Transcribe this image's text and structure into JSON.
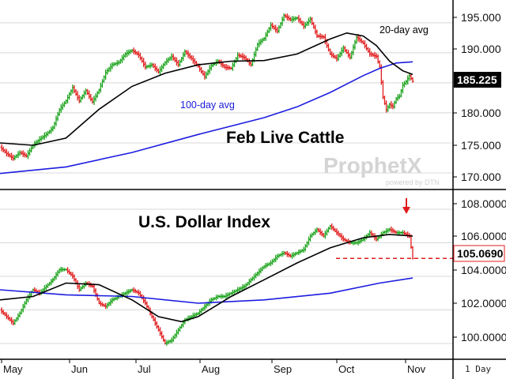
{
  "branding": {
    "watermark": "ProphetX",
    "watermark_sub": "powered by DTN"
  },
  "period_label": "1 Day",
  "x_axis": {
    "months": [
      "May",
      "Jun",
      "Jul",
      "Aug",
      "Sep",
      "Oct",
      "Nov"
    ]
  },
  "colors": {
    "up_bar": "#1aa31a",
    "down_bar": "#e01b1b",
    "ma_short": "#000000",
    "ma_long": "#1c1ce0",
    "marker": "#e01b1b",
    "grid": "#d8d8d8"
  },
  "chart_data": [
    {
      "type": "ohlc",
      "title": "Feb Live Cattle",
      "ylim": [
        167.5,
        198.0
      ],
      "yticks": [
        "170.000",
        "175.000",
        "180.000",
        "185.000",
        "190.000",
        "195.000"
      ],
      "grid": true,
      "last_value_label": "185.225",
      "annotations": {
        "short_ma": "20-day avg",
        "long_ma": "100-day avg"
      },
      "price_path": [
        [
          0,
          174.3
        ],
        [
          4,
          173.2
        ],
        [
          8,
          172.4
        ],
        [
          12,
          173.4
        ],
        [
          16,
          172.8
        ],
        [
          20,
          174.6
        ],
        [
          24,
          175.6
        ],
        [
          28,
          176.4
        ],
        [
          32,
          177.5
        ],
        [
          36,
          180.5
        ],
        [
          40,
          182.0
        ],
        [
          44,
          184.2
        ],
        [
          48,
          182.0
        ],
        [
          52,
          183.7
        ],
        [
          56,
          181.8
        ],
        [
          60,
          183.8
        ],
        [
          64,
          186.7
        ],
        [
          68,
          188.0
        ],
        [
          72,
          188.4
        ],
        [
          76,
          189.8
        ],
        [
          80,
          190.4
        ],
        [
          84,
          189.6
        ],
        [
          88,
          187.6
        ],
        [
          92,
          188.0
        ],
        [
          96,
          186.8
        ],
        [
          100,
          188.4
        ],
        [
          104,
          189.4
        ],
        [
          108,
          188.0
        ],
        [
          112,
          190.2
        ],
        [
          116,
          189.0
        ],
        [
          120,
          187.7
        ],
        [
          124,
          186.0
        ],
        [
          128,
          187.9
        ],
        [
          132,
          188.6
        ],
        [
          136,
          187.6
        ],
        [
          140,
          187.4
        ],
        [
          144,
          189.6
        ],
        [
          148,
          189.2
        ],
        [
          152,
          188.0
        ],
        [
          156,
          191.4
        ],
        [
          160,
          192.4
        ],
        [
          164,
          194.6
        ],
        [
          168,
          193.6
        ],
        [
          172,
          196.2
        ],
        [
          176,
          195.5
        ],
        [
          180,
          195.8
        ],
        [
          184,
          194.4
        ],
        [
          188,
          195.6
        ],
        [
          192,
          192.8
        ],
        [
          196,
          192.6
        ],
        [
          200,
          189.8
        ],
        [
          204,
          189.0
        ],
        [
          208,
          190.8
        ],
        [
          212,
          189.2
        ],
        [
          216,
          192.6
        ],
        [
          220,
          191.6
        ],
        [
          224,
          189.8
        ],
        [
          228,
          189.4
        ],
        [
          230,
          187.6
        ],
        [
          232,
          182.6
        ],
        [
          234,
          180.5
        ],
        [
          236,
          181.4
        ],
        [
          238,
          181.0
        ],
        [
          240,
          182.4
        ],
        [
          242,
          182.8
        ],
        [
          244,
          184.6
        ],
        [
          246,
          185.2
        ],
        [
          248,
          186.2
        ],
        [
          250,
          185.225
        ]
      ],
      "short_ma_path": [
        [
          0,
          175.0
        ],
        [
          20,
          174.6
        ],
        [
          40,
          175.8
        ],
        [
          60,
          180.6
        ],
        [
          80,
          184.4
        ],
        [
          100,
          186.6
        ],
        [
          120,
          188.0
        ],
        [
          140,
          188.6
        ],
        [
          160,
          188.7
        ],
        [
          180,
          189.8
        ],
        [
          200,
          192.3
        ],
        [
          210,
          193.3
        ],
        [
          220,
          192.8
        ],
        [
          228,
          191.2
        ],
        [
          236,
          188.6
        ],
        [
          244,
          187.0
        ],
        [
          250,
          186.4
        ]
      ],
      "long_ma_path": [
        [
          0,
          169.9
        ],
        [
          40,
          171.0
        ],
        [
          80,
          173.4
        ],
        [
          120,
          176.4
        ],
        [
          160,
          179.2
        ],
        [
          180,
          181.0
        ],
        [
          200,
          183.4
        ],
        [
          220,
          186.2
        ],
        [
          230,
          187.4
        ],
        [
          240,
          188.3
        ],
        [
          250,
          188.5
        ]
      ]
    },
    {
      "type": "ohlc",
      "title": "U.S. Dollar Index",
      "ylim": [
        99.2,
        108.8
      ],
      "yticks": [
        "100.0000",
        "102.0000",
        "104.0000",
        "106.0000",
        "108.0000"
      ],
      "grid": true,
      "last_value_label": "105.0690",
      "reference_line_value": 105.069,
      "price_path": [
        [
          0,
          102.0
        ],
        [
          4,
          101.6
        ],
        [
          8,
          101.2
        ],
        [
          12,
          101.8
        ],
        [
          16,
          102.6
        ],
        [
          20,
          103.2
        ],
        [
          24,
          103.0
        ],
        [
          28,
          103.4
        ],
        [
          32,
          103.8
        ],
        [
          36,
          104.4
        ],
        [
          40,
          104.4
        ],
        [
          44,
          104.0
        ],
        [
          48,
          103.2
        ],
        [
          52,
          103.6
        ],
        [
          56,
          103.4
        ],
        [
          60,
          102.4
        ],
        [
          64,
          102.2
        ],
        [
          68,
          102.6
        ],
        [
          72,
          102.8
        ],
        [
          76,
          103.0
        ],
        [
          80,
          103.2
        ],
        [
          84,
          103.0
        ],
        [
          88,
          102.4
        ],
        [
          92,
          101.6
        ],
        [
          96,
          100.8
        ],
        [
          100,
          100.0
        ],
        [
          104,
          100.2
        ],
        [
          108,
          100.8
        ],
        [
          112,
          101.4
        ],
        [
          116,
          101.6
        ],
        [
          120,
          101.8
        ],
        [
          124,
          102.2
        ],
        [
          128,
          102.6
        ],
        [
          132,
          102.8
        ],
        [
          136,
          102.8
        ],
        [
          140,
          103.0
        ],
        [
          144,
          103.2
        ],
        [
          148,
          103.4
        ],
        [
          152,
          103.8
        ],
        [
          156,
          104.2
        ],
        [
          160,
          104.6
        ],
        [
          164,
          104.8
        ],
        [
          168,
          105.2
        ],
        [
          172,
          105.4
        ],
        [
          176,
          105.2
        ],
        [
          180,
          105.4
        ],
        [
          184,
          105.6
        ],
        [
          188,
          106.4
        ],
        [
          192,
          106.8
        ],
        [
          196,
          106.4
        ],
        [
          200,
          107.0
        ],
        [
          204,
          106.6
        ],
        [
          208,
          106.2
        ],
        [
          212,
          106.0
        ],
        [
          216,
          106.0
        ],
        [
          220,
          106.2
        ],
        [
          224,
          106.6
        ],
        [
          228,
          106.2
        ],
        [
          232,
          106.6
        ],
        [
          236,
          106.8
        ],
        [
          240,
          106.6
        ],
        [
          244,
          106.6
        ],
        [
          248,
          106.4
        ],
        [
          250,
          105.069
        ]
      ],
      "short_ma_path": [
        [
          0,
          102.6
        ],
        [
          20,
          102.8
        ],
        [
          40,
          103.6
        ],
        [
          60,
          103.5
        ],
        [
          80,
          102.6
        ],
        [
          96,
          101.6
        ],
        [
          110,
          101.3
        ],
        [
          120,
          101.6
        ],
        [
          140,
          102.8
        ],
        [
          160,
          103.8
        ],
        [
          180,
          104.8
        ],
        [
          200,
          105.7
        ],
        [
          220,
          106.3
        ],
        [
          236,
          106.5
        ],
        [
          250,
          106.4
        ]
      ],
      "long_ma_path": [
        [
          0,
          103.2
        ],
        [
          40,
          102.9
        ],
        [
          80,
          102.8
        ],
        [
          120,
          102.4
        ],
        [
          160,
          102.6
        ],
        [
          200,
          103.0
        ],
        [
          230,
          103.6
        ],
        [
          250,
          103.9
        ]
      ]
    }
  ]
}
